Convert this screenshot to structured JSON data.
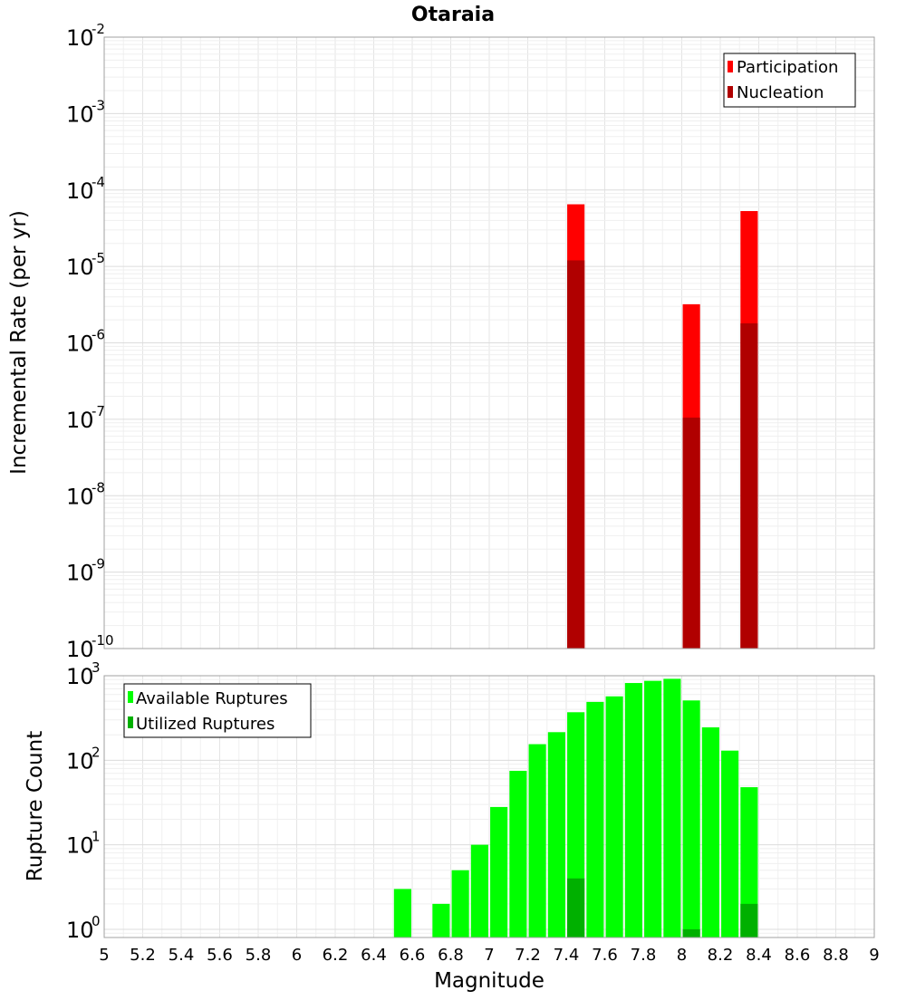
{
  "title": "Otaraia",
  "chart_data": [
    {
      "type": "bar",
      "ylabel": "Incremental Rate (per yr)",
      "yscale": "log",
      "ylim": [
        1e-10,
        0.01
      ],
      "ytick_base": "10",
      "ytick_exponents": [
        "-10",
        "-9",
        "-8",
        "-7",
        "-6",
        "-5",
        "-4",
        "-3",
        "-2"
      ],
      "xlim": [
        5,
        9
      ],
      "bar_width": 0.09,
      "legend_position": "top-right",
      "grid": true,
      "series": [
        {
          "name": "Participation",
          "color": "#ff0000",
          "points": [
            {
              "x": 7.45,
              "y": 6.5e-05
            },
            {
              "x": 8.05,
              "y": 3.2e-06
            },
            {
              "x": 8.35,
              "y": 5.3e-05
            }
          ]
        },
        {
          "name": "Nucleation",
          "color": "#b00000",
          "points": [
            {
              "x": 7.45,
              "y": 1.2e-05
            },
            {
              "x": 8.05,
              "y": 1.05e-07
            },
            {
              "x": 8.35,
              "y": 1.8e-06
            }
          ]
        }
      ]
    },
    {
      "type": "bar",
      "ylabel": "Rupture Count",
      "xlabel": "Magnitude",
      "yscale": "log",
      "ylim": [
        0.8,
        1000
      ],
      "ytick_base": "10",
      "ytick_exponents": [
        "0",
        "1",
        "2",
        "3"
      ],
      "xlim": [
        5,
        9
      ],
      "xticks": [
        "5",
        "5.2",
        "5.4",
        "5.6",
        "5.8",
        "6",
        "6.2",
        "6.4",
        "6.6",
        "6.8",
        "7",
        "7.2",
        "7.4",
        "7.6",
        "7.8",
        "8",
        "8.2",
        "8.4",
        "8.6",
        "8.8",
        "9"
      ],
      "bar_width": 0.09,
      "legend_position": "top-left",
      "grid": true,
      "series": [
        {
          "name": "Available Ruptures",
          "color": "#00ff00",
          "points": [
            {
              "x": 6.55,
              "y": 3
            },
            {
              "x": 6.75,
              "y": 2
            },
            {
              "x": 6.85,
              "y": 5
            },
            {
              "x": 6.95,
              "y": 10
            },
            {
              "x": 7.05,
              "y": 28
            },
            {
              "x": 7.15,
              "y": 75
            },
            {
              "x": 7.25,
              "y": 155
            },
            {
              "x": 7.35,
              "y": 215
            },
            {
              "x": 7.45,
              "y": 370
            },
            {
              "x": 7.55,
              "y": 490
            },
            {
              "x": 7.65,
              "y": 570
            },
            {
              "x": 7.75,
              "y": 820
            },
            {
              "x": 7.85,
              "y": 870
            },
            {
              "x": 7.95,
              "y": 920
            },
            {
              "x": 8.05,
              "y": 510
            },
            {
              "x": 8.15,
              "y": 245
            },
            {
              "x": 8.25,
              "y": 130
            },
            {
              "x": 8.35,
              "y": 48
            }
          ]
        },
        {
          "name": "Utilized Ruptures",
          "color": "#00b000",
          "points": [
            {
              "x": 7.45,
              "y": 4
            },
            {
              "x": 8.05,
              "y": 1
            },
            {
              "x": 8.35,
              "y": 2
            }
          ]
        }
      ]
    }
  ]
}
